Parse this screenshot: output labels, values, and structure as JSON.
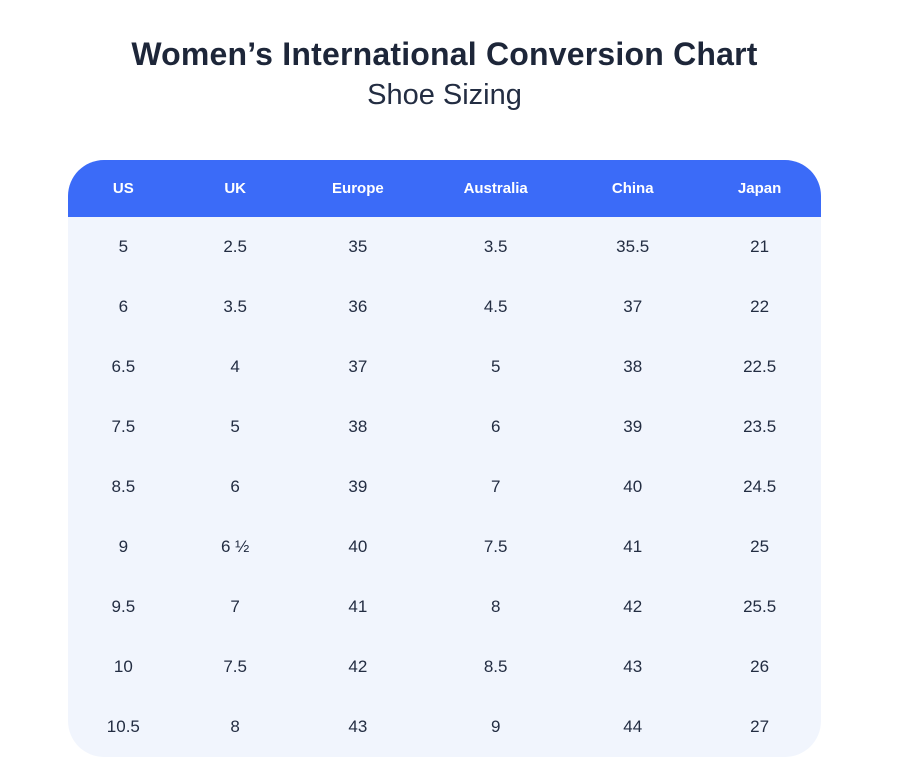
{
  "page": {
    "title": "Women’s International Conversion Chart",
    "subtitle": "Shoe Sizing"
  },
  "colors": {
    "header_bg": "#3b6bf8",
    "header_text": "#ffffff",
    "body_bg": "#f1f5fd",
    "cell_text": "#232d42",
    "title_text": "#1d2639",
    "page_bg": "#ffffff"
  },
  "table": {
    "columns": [
      "US",
      "UK",
      "Europe",
      "Australia",
      "China",
      "Japan"
    ],
    "rows": [
      [
        "5",
        "2.5",
        "35",
        "3.5",
        "35.5",
        "21"
      ],
      [
        "6",
        "3.5",
        "36",
        "4.5",
        "37",
        "22"
      ],
      [
        "6.5",
        "4",
        "37",
        "5",
        "38",
        "22.5"
      ],
      [
        "7.5",
        "5",
        "38",
        "6",
        "39",
        "23.5"
      ],
      [
        "8.5",
        "6",
        "39",
        "7",
        "40",
        "24.5"
      ],
      [
        "9",
        "6 ½",
        "40",
        "7.5",
        "41",
        "25"
      ],
      [
        "9.5",
        "7",
        "41",
        "8",
        "42",
        "25.5"
      ],
      [
        "10",
        "7.5",
        "42",
        "8.5",
        "43",
        "26"
      ],
      [
        "10.5",
        "8",
        "43",
        "9",
        "44",
        "27"
      ]
    ]
  },
  "chart_data": {
    "type": "table",
    "title": "Women’s International Conversion Chart",
    "subtitle": "Shoe Sizing",
    "columns": [
      "US",
      "UK",
      "Europe",
      "Australia",
      "China",
      "Japan"
    ],
    "rows": [
      [
        "5",
        "2.5",
        "35",
        "3.5",
        "35.5",
        "21"
      ],
      [
        "6",
        "3.5",
        "36",
        "4.5",
        "37",
        "22"
      ],
      [
        "6.5",
        "4",
        "37",
        "5",
        "38",
        "22.5"
      ],
      [
        "7.5",
        "5",
        "38",
        "6",
        "39",
        "23.5"
      ],
      [
        "8.5",
        "6",
        "39",
        "7",
        "40",
        "24.5"
      ],
      [
        "9",
        "6 ½",
        "40",
        "7.5",
        "41",
        "25"
      ],
      [
        "9.5",
        "7",
        "41",
        "8",
        "42",
        "25.5"
      ],
      [
        "10",
        "7.5",
        "42",
        "8.5",
        "43",
        "26"
      ],
      [
        "10.5",
        "8",
        "43",
        "9",
        "44",
        "27"
      ]
    ],
    "legend_position": "none",
    "grid": false
  }
}
